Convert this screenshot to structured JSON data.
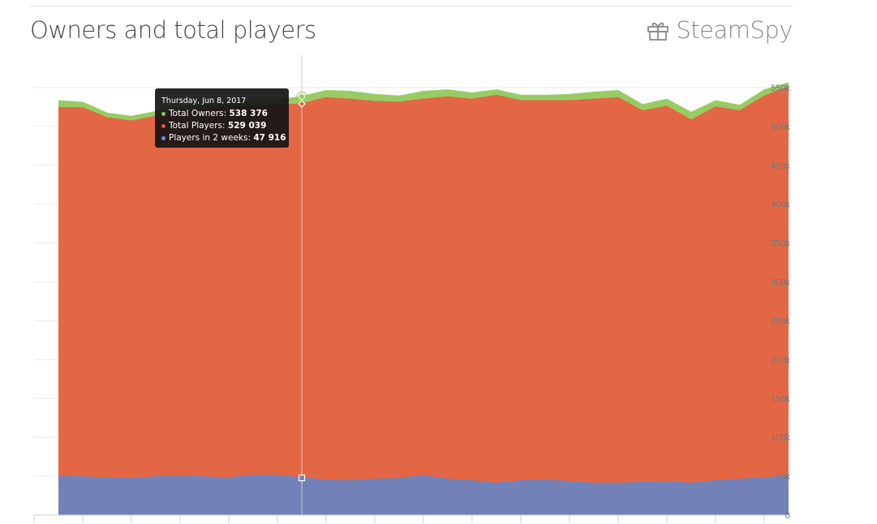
{
  "header": {
    "title": "Owners and total players",
    "brand": "SteamSpy",
    "brand_icon": "gift-icon"
  },
  "tooltip": {
    "date": "Thursday, Jun 8, 2017",
    "rows": [
      {
        "label": "Total Owners: ",
        "value": "538 376",
        "color": "#8bc34a"
      },
      {
        "label": "Total Players: ",
        "value": "529 039",
        "color": "#e2523a"
      },
      {
        "label": "Players in 2 weeks: ",
        "value": "47 916",
        "color": "#6b8ee0"
      }
    ]
  },
  "chart_data": {
    "type": "area",
    "ylim": [
      0,
      550000
    ],
    "y_ticks": [
      "0",
      "50k",
      "100k",
      "150k",
      "200k",
      "250k",
      "300k",
      "350k",
      "400k",
      "450k",
      "500k",
      "550k"
    ],
    "y_tick_values": [
      0,
      50000,
      100000,
      150000,
      200000,
      250000,
      300000,
      350000,
      400000,
      450000,
      500000,
      550000
    ],
    "grid": true,
    "colors": {
      "owners": "#97cc64",
      "players": "#e36744",
      "two_weeks": "#7282b8"
    },
    "highlight_index": 10,
    "series": [
      {
        "name": "Total Owners",
        "values": [
          533000,
          531000,
          517000,
          513000,
          519000,
          525000,
          528000,
          530000,
          532000,
          534000,
          538376,
          546000,
          545000,
          541000,
          539000,
          545000,
          547000,
          543000,
          547000,
          540000,
          540000,
          541000,
          544000,
          546000,
          528000,
          535000,
          518000,
          533000,
          527000,
          547000,
          556000
        ]
      },
      {
        "name": "Total Players",
        "values": [
          524000,
          524000,
          511000,
          507000,
          513000,
          519000,
          522000,
          524000,
          526000,
          527000,
          529039,
          537000,
          535000,
          532000,
          531000,
          535000,
          538000,
          535000,
          540000,
          533000,
          533000,
          533000,
          535000,
          537000,
          520000,
          526000,
          508000,
          525000,
          520000,
          539000,
          551000
        ]
      },
      {
        "name": "Players in 2 weeks",
        "values": [
          50000,
          49000,
          48000,
          47000,
          49000,
          50000,
          49000,
          48000,
          51000,
          51000,
          47916,
          45000,
          44000,
          46000,
          47000,
          51000,
          46000,
          44000,
          41000,
          44000,
          45000,
          43000,
          41000,
          41000,
          42000,
          43000,
          41000,
          44000,
          46000,
          48000,
          50000
        ]
      }
    ]
  }
}
